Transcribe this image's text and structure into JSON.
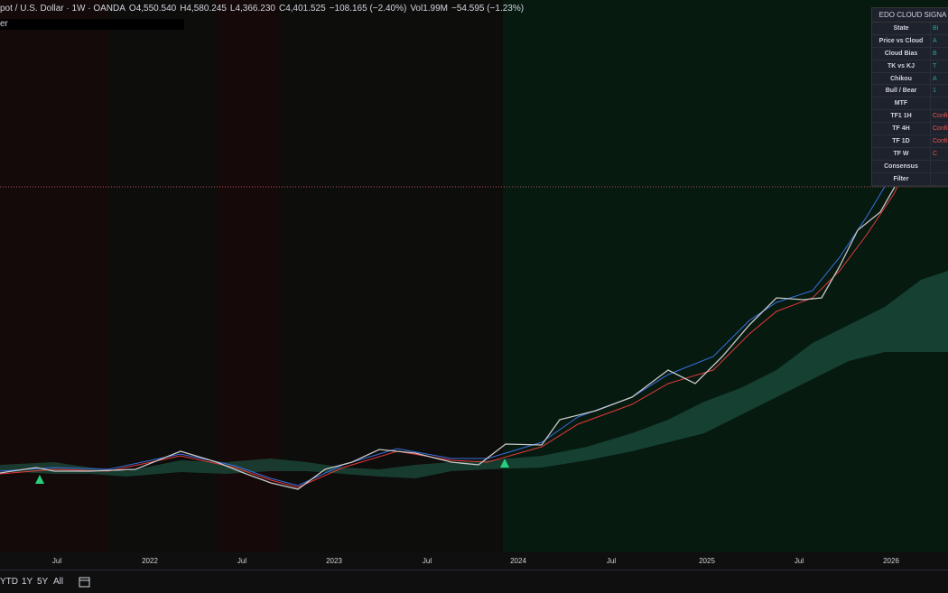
{
  "header": {
    "symbol": "pot / U.S. Dollar · 1W · OANDA",
    "ohlc": [
      "O4,550.540",
      "H4,580.245",
      "L4,366.230",
      "C4,401.525",
      "−108.165 (−2.40%)",
      "Vol1.99M",
      "−54.595 (−1.23%)"
    ],
    "indicator": "er"
  },
  "table": {
    "title": "EDO CLOUD SIGNA",
    "rows": [
      [
        "State",
        "Bi"
      ],
      [
        "Price vs Cloud",
        "A"
      ],
      [
        "Cloud Bias",
        "B"
      ],
      [
        "TK vs KJ",
        "T"
      ],
      [
        "Chikou",
        "A"
      ],
      [
        "Bull / Bear",
        "1"
      ],
      [
        "MTF",
        ""
      ],
      [
        "TF1 1H",
        "Confir"
      ],
      [
        "TF 4H",
        "Confir"
      ],
      [
        "TF 1D",
        "Confir"
      ],
      [
        "TF W",
        "C"
      ],
      [
        "Consensus",
        ""
      ],
      [
        "Filter",
        ""
      ]
    ]
  },
  "time_axis": {
    "labels": [
      "Jul",
      "2022",
      "Jul",
      "2023",
      "Jul",
      "2024",
      "Jul",
      "2025",
      "Jul",
      "2026"
    ]
  },
  "toolbar": {
    "buttons": [
      "YTD",
      "1Y",
      "5Y",
      "All"
    ]
  }
}
